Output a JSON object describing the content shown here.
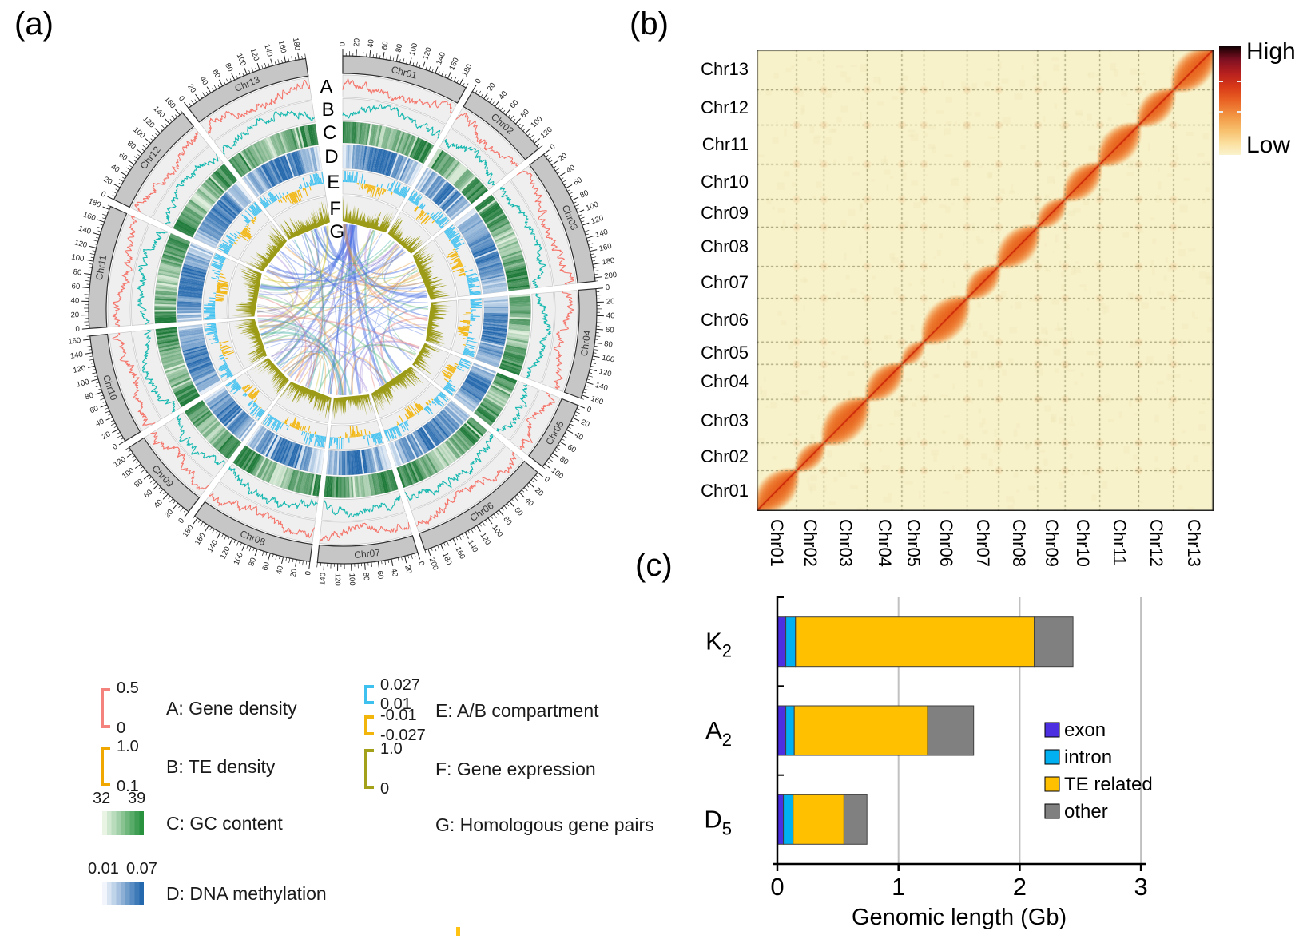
{
  "figure": {
    "panel_a_label": "(a)",
    "panel_b_label": "(b)",
    "panel_c_label": "(c)"
  },
  "circos": {
    "track_letters": [
      "A",
      "B",
      "C",
      "D",
      "E",
      "F",
      "G"
    ],
    "chromosomes": [
      {
        "name": "Chr01",
        "size_mb": 190
      },
      {
        "name": "Chr02",
        "size_mb": 130
      },
      {
        "name": "Chr03",
        "size_mb": 205
      },
      {
        "name": "Chr04",
        "size_mb": 165
      },
      {
        "name": "Chr05",
        "size_mb": 105
      },
      {
        "name": "Chr06",
        "size_mb": 205
      },
      {
        "name": "Chr07",
        "size_mb": 150
      },
      {
        "name": "Chr08",
        "size_mb": 185
      },
      {
        "name": "Chr09",
        "size_mb": 130
      },
      {
        "name": "Chr10",
        "size_mb": 165
      },
      {
        "name": "Chr11",
        "size_mb": 185
      },
      {
        "name": "Chr12",
        "size_mb": 165
      },
      {
        "name": "Chr13",
        "size_mb": 190
      }
    ],
    "tick_label_interval_mb": 20,
    "tick_minor_interval_mb": 5,
    "track_colors": {
      "ideogram": "#C6C6C6",
      "track_bg": "#EFEFEF",
      "gene_density_line": "#F4766C",
      "te_density_line": "#17B8B0",
      "gc_palette": [
        "#E9F4E5",
        "#1B7837"
      ],
      "methylation_palette": [
        "#F0F5FB",
        "#2166AC"
      ],
      "compartment_a": "#3FC1F0",
      "compartment_b": "#F2B50C",
      "expression_fill": "#9C9B17",
      "link_palette": [
        "#4F74E3",
        "#E89B3C",
        "#55B56A",
        "#26A69A",
        "#9C7FD6",
        "#8D9BA8",
        "#CFC438",
        "#E57373"
      ]
    }
  },
  "track_legend": [
    {
      "id": "A",
      "label": "A: Gene density",
      "scale": {
        "kind": "bracket",
        "color": "#F4837D",
        "top": "0.5",
        "bottom": "0"
      }
    },
    {
      "id": "B",
      "label": "B: TE density",
      "scale": {
        "kind": "bracket",
        "color": "#F0A800",
        "top": "1.0",
        "bottom": "0.1"
      }
    },
    {
      "id": "C",
      "label": "C: GC content",
      "scale": {
        "kind": "gradient",
        "palette": [
          "#E9F4E5",
          "#28923F"
        ],
        "min": "32",
        "max": "39"
      }
    },
    {
      "id": "D",
      "label": "D: DNA methylation",
      "scale": {
        "kind": "gradient",
        "palette": [
          "#F2F6FC",
          "#2468AE"
        ],
        "min": "0.01",
        "max": "0.07"
      }
    },
    {
      "id": "E",
      "label": "E: A/B compartment",
      "scale": {
        "kind": "double-bracket",
        "brackets": [
          {
            "color": "#3FC1F0",
            "top": "0.027",
            "bottom": "0.01"
          },
          {
            "color": "#F2B50C",
            "top": "-0.01",
            "bottom": "-0.027"
          }
        ]
      }
    },
    {
      "id": "F",
      "label": "F: Gene expression",
      "scale": {
        "kind": "bracket",
        "color": "#A3A019",
        "top": "1.0",
        "bottom": "0"
      }
    },
    {
      "id": "G",
      "label": "G: Homologous gene pairs",
      "scale": {
        "kind": "none"
      }
    }
  ],
  "hic": {
    "y_labels_top_to_bottom": [
      "Chr13",
      "Chr12",
      "Chr11",
      "Chr10",
      "Chr09",
      "Chr08",
      "Chr07",
      "Chr06",
      "Chr05",
      "Chr04",
      "Chr03",
      "Chr02",
      "Chr01"
    ],
    "x_labels": [
      "Chr01",
      "Chr02",
      "Chr03",
      "Chr04",
      "Chr05",
      "Chr06",
      "Chr07",
      "Chr08",
      "Chr09",
      "Chr10",
      "Chr11",
      "Chr12",
      "Chr13"
    ],
    "colorbar": {
      "high_label": "High",
      "low_label": "Low"
    }
  },
  "chart_data": [
    {
      "id": "hic-contact-map",
      "type": "heatmap",
      "x_categories": [
        "Chr01",
        "Chr02",
        "Chr03",
        "Chr04",
        "Chr05",
        "Chr06",
        "Chr07",
        "Chr08",
        "Chr09",
        "Chr10",
        "Chr11",
        "Chr12",
        "Chr13"
      ],
      "y_categories_bottom_to_top": [
        "Chr01",
        "Chr02",
        "Chr03",
        "Chr04",
        "Chr05",
        "Chr06",
        "Chr07",
        "Chr08",
        "Chr09",
        "Chr10",
        "Chr11",
        "Chr12",
        "Chr13"
      ],
      "chromosome_sizes_mb": [
        190,
        130,
        205,
        165,
        105,
        205,
        150,
        185,
        130,
        165,
        185,
        165,
        190
      ],
      "pattern": "intra-chromosomal contact frequency high along the diagonal, weak inter-chromosomal background with faint dots at chromosome-boundary intersections",
      "scale": {
        "high": "High",
        "low": "Low"
      }
    },
    {
      "id": "genome-composition",
      "type": "bar",
      "stacked": true,
      "orientation": "horizontal",
      "categories": [
        "K2",
        "A2",
        "D5"
      ],
      "category_rich": [
        {
          "base": "K",
          "sub": "2"
        },
        {
          "base": "A",
          "sub": "2"
        },
        {
          "base": "D",
          "sub": "5"
        }
      ],
      "series": [
        {
          "name": "exon",
          "color": "#4B2FE0",
          "values": [
            0.07,
            0.07,
            0.05
          ]
        },
        {
          "name": "intron",
          "color": "#00B0F0",
          "values": [
            0.08,
            0.07,
            0.08
          ]
        },
        {
          "name": "TE related",
          "color": "#FFC000",
          "values": [
            1.97,
            1.1,
            0.42
          ]
        },
        {
          "name": "other",
          "color": "#808080",
          "values": [
            0.32,
            0.38,
            0.19
          ]
        }
      ],
      "totals_gb": [
        2.44,
        1.62,
        0.74
      ],
      "xlabel": "Genomic length (Gb)",
      "xticks": [
        "0",
        "1",
        "2",
        "3"
      ],
      "xlim": [
        0,
        3
      ],
      "grid": true,
      "legend_position": "center-right"
    }
  ],
  "stray_mark": {
    "color": "#FFC413"
  }
}
